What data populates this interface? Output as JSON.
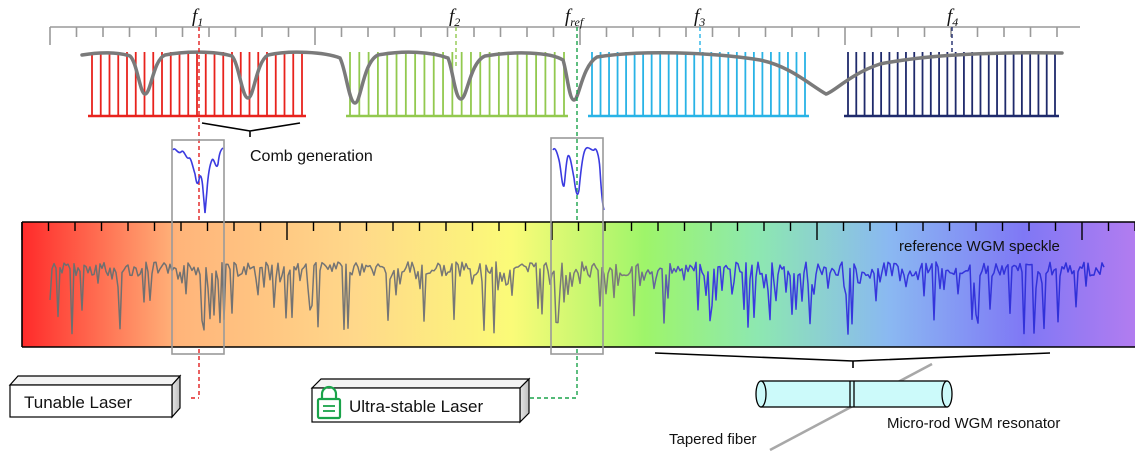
{
  "freq_labels": {
    "f1": {
      "main": "f",
      "sub": "1"
    },
    "f2": {
      "main": "f",
      "sub": "2"
    },
    "fref": {
      "main": "f",
      "sub": "ref"
    },
    "f3": {
      "main": "f",
      "sub": "3"
    },
    "f4": {
      "main": "f",
      "sub": "4"
    }
  },
  "labels": {
    "comb_generation": "Comb generation",
    "reference_speckle": "reference WGM speckle",
    "tunable_laser": "Tunable Laser",
    "ultra_stable_laser": "Ultra-stable Laser",
    "micro_rod": "Micro-rod WGM resonator",
    "tapered_fiber": "Tapered fiber"
  },
  "icons": {
    "lock": "lock-icon"
  },
  "colors": {
    "comb_red": "#e8231d",
    "comb_green": "#92c94f",
    "comb_cyan": "#29b3e6",
    "comb_navy": "#1f2a6b",
    "envelope": "#7a7a7a",
    "speckle_trace": "#3b3be0",
    "lock_green": "#1aa34a",
    "resonator_fill": "#ccfafa"
  }
}
